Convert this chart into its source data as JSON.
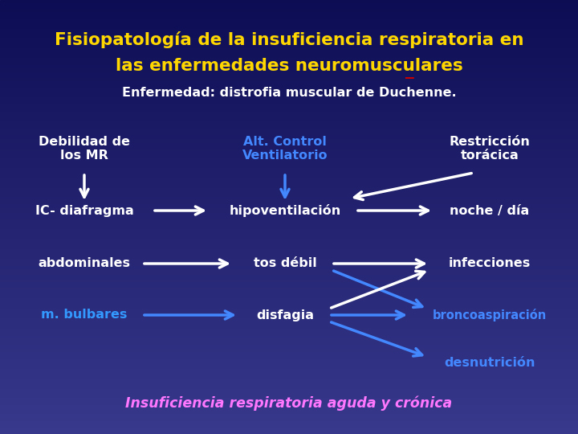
{
  "title_line1": "Fisiopatología de la insuficiencia respiratoria en",
  "title_line2": "las enfermedades neuromusculares",
  "title_color": "#FFD700",
  "title_underscore_color": "#CC0000",
  "subtitle": "Enfermedad: distrofia muscular de Duchenne.",
  "subtitle_color": "#FFFFFF",
  "footer": "Insuficiencia respiratoria aguda y crónica",
  "footer_color": "#FF77FF",
  "col1_colors": [
    "#FFFFFF",
    "#FFFFFF",
    "#FFFFFF",
    "#3399FF"
  ],
  "col2_colors": [
    "#4488FF",
    "#FFFFFF",
    "#FFFFFF",
    "#FFFFFF"
  ],
  "col3_colors": [
    "#FFFFFF",
    "#FFFFFF",
    "#FFFFFF",
    "#4488FF",
    "#4488FF"
  ]
}
